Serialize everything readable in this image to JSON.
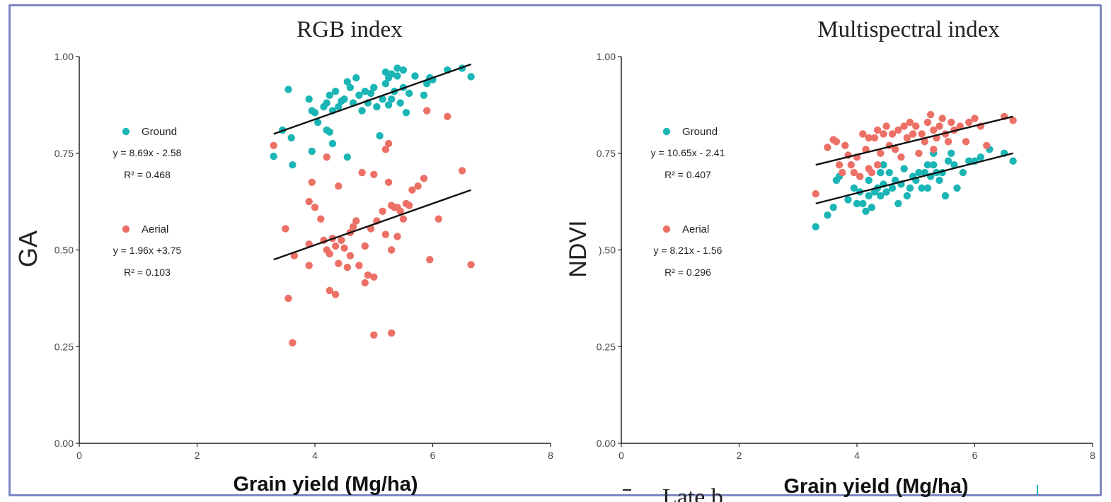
{
  "chart_data": [
    {
      "type": "scatter",
      "title": "RGB index",
      "xlabel": "Grain yield (Mg/ha)",
      "ylabel": "GA",
      "xlim": [
        0,
        8
      ],
      "ylim": [
        0,
        1
      ],
      "x_ticks": [
        "0",
        "2",
        "4",
        "6",
        "8"
      ],
      "y_ticks": [
        "0.00",
        "0.25",
        "0.50",
        "0.75",
        "1.00"
      ],
      "grid": false,
      "legend_position": "left",
      "series": [
        {
          "name": "Ground",
          "color": "#1bb5b5",
          "equation": "y = 8.69x - 2.58",
          "r2": "R² = 0.468",
          "trend": [
            [
              3.3,
              0.8
            ],
            [
              6.65,
              0.98
            ]
          ],
          "points": [
            [
              3.3,
              0.742
            ],
            [
              3.45,
              0.81
            ],
            [
              3.55,
              0.915
            ],
            [
              3.6,
              0.79
            ],
            [
              3.62,
              0.72
            ],
            [
              3.9,
              0.89
            ],
            [
              3.95,
              0.86
            ],
            [
              4.0,
              0.855
            ],
            [
              3.95,
              0.755
            ],
            [
              4.05,
              0.83
            ],
            [
              4.15,
              0.87
            ],
            [
              4.2,
              0.88
            ],
            [
              4.2,
              0.81
            ],
            [
              4.25,
              0.805
            ],
            [
              4.3,
              0.775
            ],
            [
              4.25,
              0.9
            ],
            [
              4.3,
              0.86
            ],
            [
              4.35,
              0.91
            ],
            [
              4.4,
              0.87
            ],
            [
              4.45,
              0.885
            ],
            [
              4.5,
              0.89
            ],
            [
              4.55,
              0.935
            ],
            [
              4.6,
              0.92
            ],
            [
              4.55,
              0.74
            ],
            [
              4.65,
              0.88
            ],
            [
              4.7,
              0.945
            ],
            [
              4.75,
              0.9
            ],
            [
              4.8,
              0.86
            ],
            [
              4.85,
              0.91
            ],
            [
              4.9,
              0.88
            ],
            [
              4.95,
              0.905
            ],
            [
              5.0,
              0.92
            ],
            [
              5.05,
              0.87
            ],
            [
              5.1,
              0.795
            ],
            [
              5.15,
              0.89
            ],
            [
              5.2,
              0.96
            ],
            [
              5.2,
              0.93
            ],
            [
              5.25,
              0.945
            ],
            [
              5.3,
              0.955
            ],
            [
              5.3,
              0.89
            ],
            [
              5.35,
              0.91
            ],
            [
              5.4,
              0.95
            ],
            [
              5.4,
              0.97
            ],
            [
              5.45,
              0.88
            ],
            [
              5.5,
              0.965
            ],
            [
              5.5,
              0.92
            ],
            [
              5.55,
              0.855
            ],
            [
              5.6,
              0.905
            ],
            [
              5.7,
              0.95
            ],
            [
              5.85,
              0.9
            ],
            [
              5.9,
              0.93
            ],
            [
              5.95,
              0.945
            ],
            [
              6.0,
              0.94
            ],
            [
              6.25,
              0.965
            ],
            [
              6.5,
              0.97
            ],
            [
              6.65,
              0.948
            ],
            [
              5.25,
              0.875
            ]
          ]
        },
        {
          "name": "Aerial",
          "color": "#ec7066",
          "equation": "y = 1.96x +3.75",
          "r2": "R² = 0.103",
          "trend": [
            [
              3.3,
              0.475
            ],
            [
              6.65,
              0.655
            ]
          ],
          "points": [
            [
              3.3,
              0.77
            ],
            [
              3.5,
              0.555
            ],
            [
              3.55,
              0.375
            ],
            [
              3.62,
              0.26
            ],
            [
              3.65,
              0.485
            ],
            [
              3.9,
              0.46
            ],
            [
              3.95,
              0.675
            ],
            [
              3.9,
              0.625
            ],
            [
              3.9,
              0.515
            ],
            [
              4.0,
              0.61
            ],
            [
              4.1,
              0.58
            ],
            [
              4.15,
              0.525
            ],
            [
              4.2,
              0.74
            ],
            [
              4.2,
              0.5
            ],
            [
              4.25,
              0.49
            ],
            [
              4.25,
              0.395
            ],
            [
              4.3,
              0.53
            ],
            [
              4.35,
              0.51
            ],
            [
              4.35,
              0.385
            ],
            [
              4.4,
              0.465
            ],
            [
              4.4,
              0.665
            ],
            [
              4.45,
              0.525
            ],
            [
              4.5,
              0.505
            ],
            [
              4.55,
              0.455
            ],
            [
              4.6,
              0.545
            ],
            [
              4.6,
              0.485
            ],
            [
              4.65,
              0.56
            ],
            [
              4.7,
              0.575
            ],
            [
              4.75,
              0.46
            ],
            [
              4.8,
              0.7
            ],
            [
              4.85,
              0.51
            ],
            [
              4.85,
              0.415
            ],
            [
              4.9,
              0.435
            ],
            [
              4.95,
              0.555
            ],
            [
              5.0,
              0.695
            ],
            [
              5.0,
              0.43
            ],
            [
              5.0,
              0.28
            ],
            [
              5.05,
              0.575
            ],
            [
              5.15,
              0.6
            ],
            [
              5.2,
              0.54
            ],
            [
              5.2,
              0.76
            ],
            [
              5.25,
              0.775
            ],
            [
              5.25,
              0.675
            ],
            [
              5.3,
              0.615
            ],
            [
              5.3,
              0.5
            ],
            [
              5.3,
              0.285
            ],
            [
              5.35,
              0.61
            ],
            [
              5.4,
              0.61
            ],
            [
              5.45,
              0.6
            ],
            [
              5.5,
              0.58
            ],
            [
              5.55,
              0.62
            ],
            [
              5.6,
              0.615
            ],
            [
              5.65,
              0.655
            ],
            [
              5.75,
              0.665
            ],
            [
              5.85,
              0.685
            ],
            [
              5.9,
              0.86
            ],
            [
              5.95,
              0.475
            ],
            [
              6.1,
              0.58
            ],
            [
              6.25,
              0.845
            ],
            [
              6.5,
              0.705
            ],
            [
              6.65,
              0.462
            ],
            [
              5.4,
              0.535
            ]
          ]
        }
      ]
    },
    {
      "type": "scatter",
      "title": "Multispectral index",
      "xlabel": "Grain yield (Mg/ha)",
      "ylabel": "NDVI",
      "xlim": [
        0,
        8
      ],
      "ylim": [
        0,
        1
      ],
      "x_ticks": [
        "0",
        "2",
        "4",
        "6",
        "8"
      ],
      "y_ticks": [
        "0.00",
        "0.25",
        ").50",
        "0.75",
        "1.00"
      ],
      "grid": false,
      "legend_position": "left",
      "series": [
        {
          "name": "Ground",
          "color": "#1bb5b5",
          "equation": "y = 10.65x - 2.41",
          "r2": "R² = 0.407",
          "trend": [
            [
              3.3,
              0.62
            ],
            [
              6.65,
              0.75
            ]
          ],
          "points": [
            [
              3.3,
              0.56
            ],
            [
              3.5,
              0.59
            ],
            [
              3.6,
              0.61
            ],
            [
              3.65,
              0.68
            ],
            [
              3.7,
              0.69
            ],
            [
              3.85,
              0.63
            ],
            [
              3.95,
              0.66
            ],
            [
              4.0,
              0.62
            ],
            [
              4.05,
              0.65
            ],
            [
              4.1,
              0.62
            ],
            [
              4.15,
              0.6
            ],
            [
              4.2,
              0.64
            ],
            [
              4.2,
              0.68
            ],
            [
              4.25,
              0.61
            ],
            [
              4.3,
              0.65
            ],
            [
              4.35,
              0.66
            ],
            [
              4.4,
              0.64
            ],
            [
              4.4,
              0.7
            ],
            [
              4.45,
              0.67
            ],
            [
              4.5,
              0.65
            ],
            [
              4.55,
              0.7
            ],
            [
              4.6,
              0.66
            ],
            [
              4.65,
              0.68
            ],
            [
              4.7,
              0.62
            ],
            [
              4.75,
              0.67
            ],
            [
              4.8,
              0.71
            ],
            [
              4.85,
              0.64
            ],
            [
              4.9,
              0.66
            ],
            [
              4.95,
              0.69
            ],
            [
              5.0,
              0.68
            ],
            [
              5.05,
              0.7
            ],
            [
              5.1,
              0.66
            ],
            [
              5.15,
              0.7
            ],
            [
              5.2,
              0.72
            ],
            [
              5.25,
              0.69
            ],
            [
              5.3,
              0.75
            ],
            [
              5.3,
              0.72
            ],
            [
              5.35,
              0.7
            ],
            [
              5.4,
              0.68
            ],
            [
              5.45,
              0.7
            ],
            [
              5.5,
              0.64
            ],
            [
              5.55,
              0.73
            ],
            [
              5.6,
              0.75
            ],
            [
              5.65,
              0.72
            ],
            [
              5.7,
              0.66
            ],
            [
              5.8,
              0.7
            ],
            [
              5.9,
              0.73
            ],
            [
              6.0,
              0.73
            ],
            [
              6.1,
              0.74
            ],
            [
              6.25,
              0.76
            ],
            [
              6.5,
              0.75
            ],
            [
              6.65,
              0.73
            ],
            [
              5.2,
              0.66
            ],
            [
              4.45,
              0.72
            ]
          ]
        },
        {
          "name": "Aerial",
          "color": "#ec7066",
          "equation": "y = 8.21x - 1.56",
          "r2": "R² = 0.296",
          "trend": [
            [
              3.3,
              0.72
            ],
            [
              6.65,
              0.845
            ]
          ],
          "points": [
            [
              3.3,
              0.645
            ],
            [
              3.5,
              0.765
            ],
            [
              3.6,
              0.785
            ],
            [
              3.65,
              0.78
            ],
            [
              3.7,
              0.72
            ],
            [
              3.75,
              0.7
            ],
            [
              3.8,
              0.77
            ],
            [
              3.85,
              0.745
            ],
            [
              3.9,
              0.72
            ],
            [
              3.95,
              0.7
            ],
            [
              4.0,
              0.74
            ],
            [
              4.05,
              0.69
            ],
            [
              4.1,
              0.8
            ],
            [
              4.15,
              0.76
            ],
            [
              4.2,
              0.79
            ],
            [
              4.25,
              0.7
            ],
            [
              4.3,
              0.79
            ],
            [
              4.35,
              0.72
            ],
            [
              4.35,
              0.81
            ],
            [
              4.4,
              0.75
            ],
            [
              4.45,
              0.8
            ],
            [
              4.5,
              0.82
            ],
            [
              4.55,
              0.77
            ],
            [
              4.6,
              0.8
            ],
            [
              4.65,
              0.76
            ],
            [
              4.7,
              0.81
            ],
            [
              4.75,
              0.74
            ],
            [
              4.8,
              0.82
            ],
            [
              4.85,
              0.79
            ],
            [
              4.9,
              0.83
            ],
            [
              4.95,
              0.8
            ],
            [
              5.0,
              0.82
            ],
            [
              5.05,
              0.75
            ],
            [
              5.1,
              0.8
            ],
            [
              5.15,
              0.78
            ],
            [
              5.2,
              0.83
            ],
            [
              5.25,
              0.85
            ],
            [
              5.3,
              0.81
            ],
            [
              5.35,
              0.79
            ],
            [
              5.4,
              0.82
            ],
            [
              5.45,
              0.84
            ],
            [
              5.5,
              0.8
            ],
            [
              5.55,
              0.78
            ],
            [
              5.6,
              0.83
            ],
            [
              5.65,
              0.81
            ],
            [
              5.75,
              0.82
            ],
            [
              5.85,
              0.78
            ],
            [
              5.9,
              0.83
            ],
            [
              6.0,
              0.84
            ],
            [
              6.1,
              0.82
            ],
            [
              6.2,
              0.77
            ],
            [
              6.5,
              0.845
            ],
            [
              6.65,
              0.835
            ],
            [
              5.3,
              0.76
            ],
            [
              4.2,
              0.71
            ]
          ]
        }
      ]
    }
  ],
  "footer_text": "Late b"
}
